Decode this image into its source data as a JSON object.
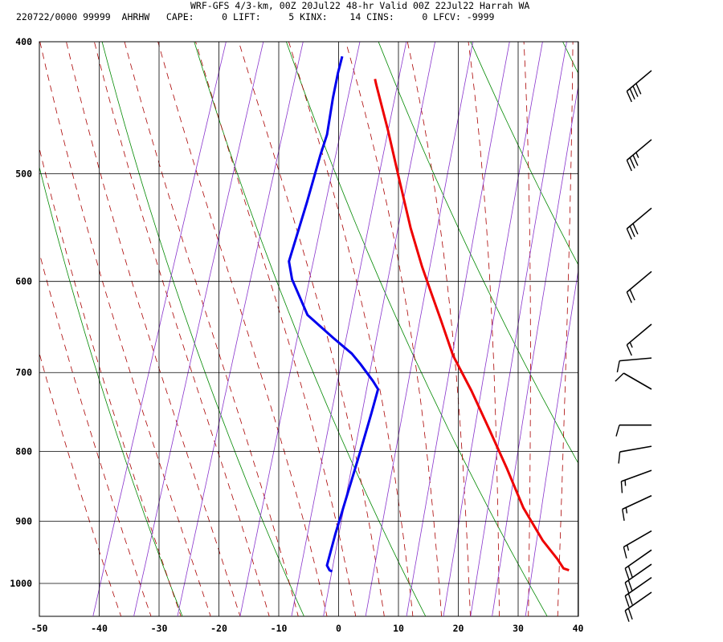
{
  "header": {
    "title": "WRF-GFS 4/3-km, 00Z 20Jul22 48-hr Valid 00Z 22Jul22 Harrah WA",
    "info": "220722/0000 99999  AHRHW   CAPE:     0 LIFT:     5 KINX:    14 CINS:     0 LFCV: -9999"
  },
  "chart_data": {
    "type": "line",
    "title": "WRF-GFS 4/3-km, 00Z 20Jul22 48-hr Valid 00Z 22Jul22 Harrah WA",
    "xlabel": "",
    "ylabel": "",
    "x_scale": "skew-T temperature (°C)",
    "y_scale": "log pressure (mb)",
    "xlim": [
      -50,
      40
    ],
    "ylim": [
      1040,
      400
    ],
    "x_ticks": [
      -50,
      -40,
      -30,
      -20,
      -10,
      0,
      10,
      20,
      30,
      40
    ],
    "y_ticks": [
      400,
      500,
      600,
      700,
      800,
      900,
      1000
    ],
    "grid": true,
    "indices": {
      "CAPE": 0,
      "LIFT": 5,
      "KINX": 14,
      "CINS": 0,
      "LFCV": -9999
    },
    "series": [
      {
        "color": "#ee0000",
        "points": [
          [
            36,
            978
          ],
          [
            35,
            975
          ],
          [
            33.5,
            960
          ],
          [
            30,
            930
          ],
          [
            25,
            880
          ],
          [
            20,
            822
          ],
          [
            15,
            770
          ],
          [
            10,
            722
          ],
          [
            5,
            680
          ],
          [
            1,
            640
          ],
          [
            -2,
            612
          ],
          [
            -5,
            585
          ],
          [
            -9,
            548
          ],
          [
            -13.5,
            505
          ],
          [
            -18,
            465
          ],
          [
            -22.5,
            430
          ],
          [
            -23,
            426
          ]
        ]
      },
      {
        "color": "#0000ee",
        "points": [
          [
            -3.5,
            980
          ],
          [
            -4,
            978
          ],
          [
            -4.7,
            970
          ],
          [
            -5,
            920
          ],
          [
            -5.3,
            800
          ],
          [
            -5.5,
            750
          ],
          [
            -5.7,
            720
          ],
          [
            -7,
            710
          ],
          [
            -10,
            690
          ],
          [
            -12,
            678
          ],
          [
            -16,
            660
          ],
          [
            -21.5,
            635
          ],
          [
            -26,
            598
          ],
          [
            -27.5,
            580
          ],
          [
            -27.7,
            525
          ],
          [
            -28,
            485
          ],
          [
            -28,
            468
          ],
          [
            -29,
            440
          ],
          [
            -29.5,
            422
          ],
          [
            -29.7,
            410
          ]
        ]
      }
    ],
    "wind_barbs": [
      {
        "p": 420,
        "dir": 230,
        "speed_kt": 40
      },
      {
        "p": 472,
        "dir": 230,
        "speed_kt": 35
      },
      {
        "p": 530,
        "dir": 230,
        "speed_kt": 30
      },
      {
        "p": 590,
        "dir": 230,
        "speed_kt": 20
      },
      {
        "p": 645,
        "dir": 230,
        "speed_kt": 15
      },
      {
        "p": 683,
        "dir": 265,
        "speed_kt": 10
      },
      {
        "p": 720,
        "dir": 300,
        "speed_kt": 10
      },
      {
        "p": 765,
        "dir": 270,
        "speed_kt": 10
      },
      {
        "p": 793,
        "dir": 260,
        "speed_kt": 10
      },
      {
        "p": 826,
        "dir": 250,
        "speed_kt": 15
      },
      {
        "p": 862,
        "dir": 245,
        "speed_kt": 15
      },
      {
        "p": 915,
        "dir": 240,
        "speed_kt": 15
      },
      {
        "p": 945,
        "dir": 235,
        "speed_kt": 20
      },
      {
        "p": 968,
        "dir": 235,
        "speed_kt": 20
      },
      {
        "p": 990,
        "dir": 235,
        "speed_kt": 20
      },
      {
        "p": 1015,
        "dir": 235,
        "speed_kt": 20
      }
    ]
  }
}
